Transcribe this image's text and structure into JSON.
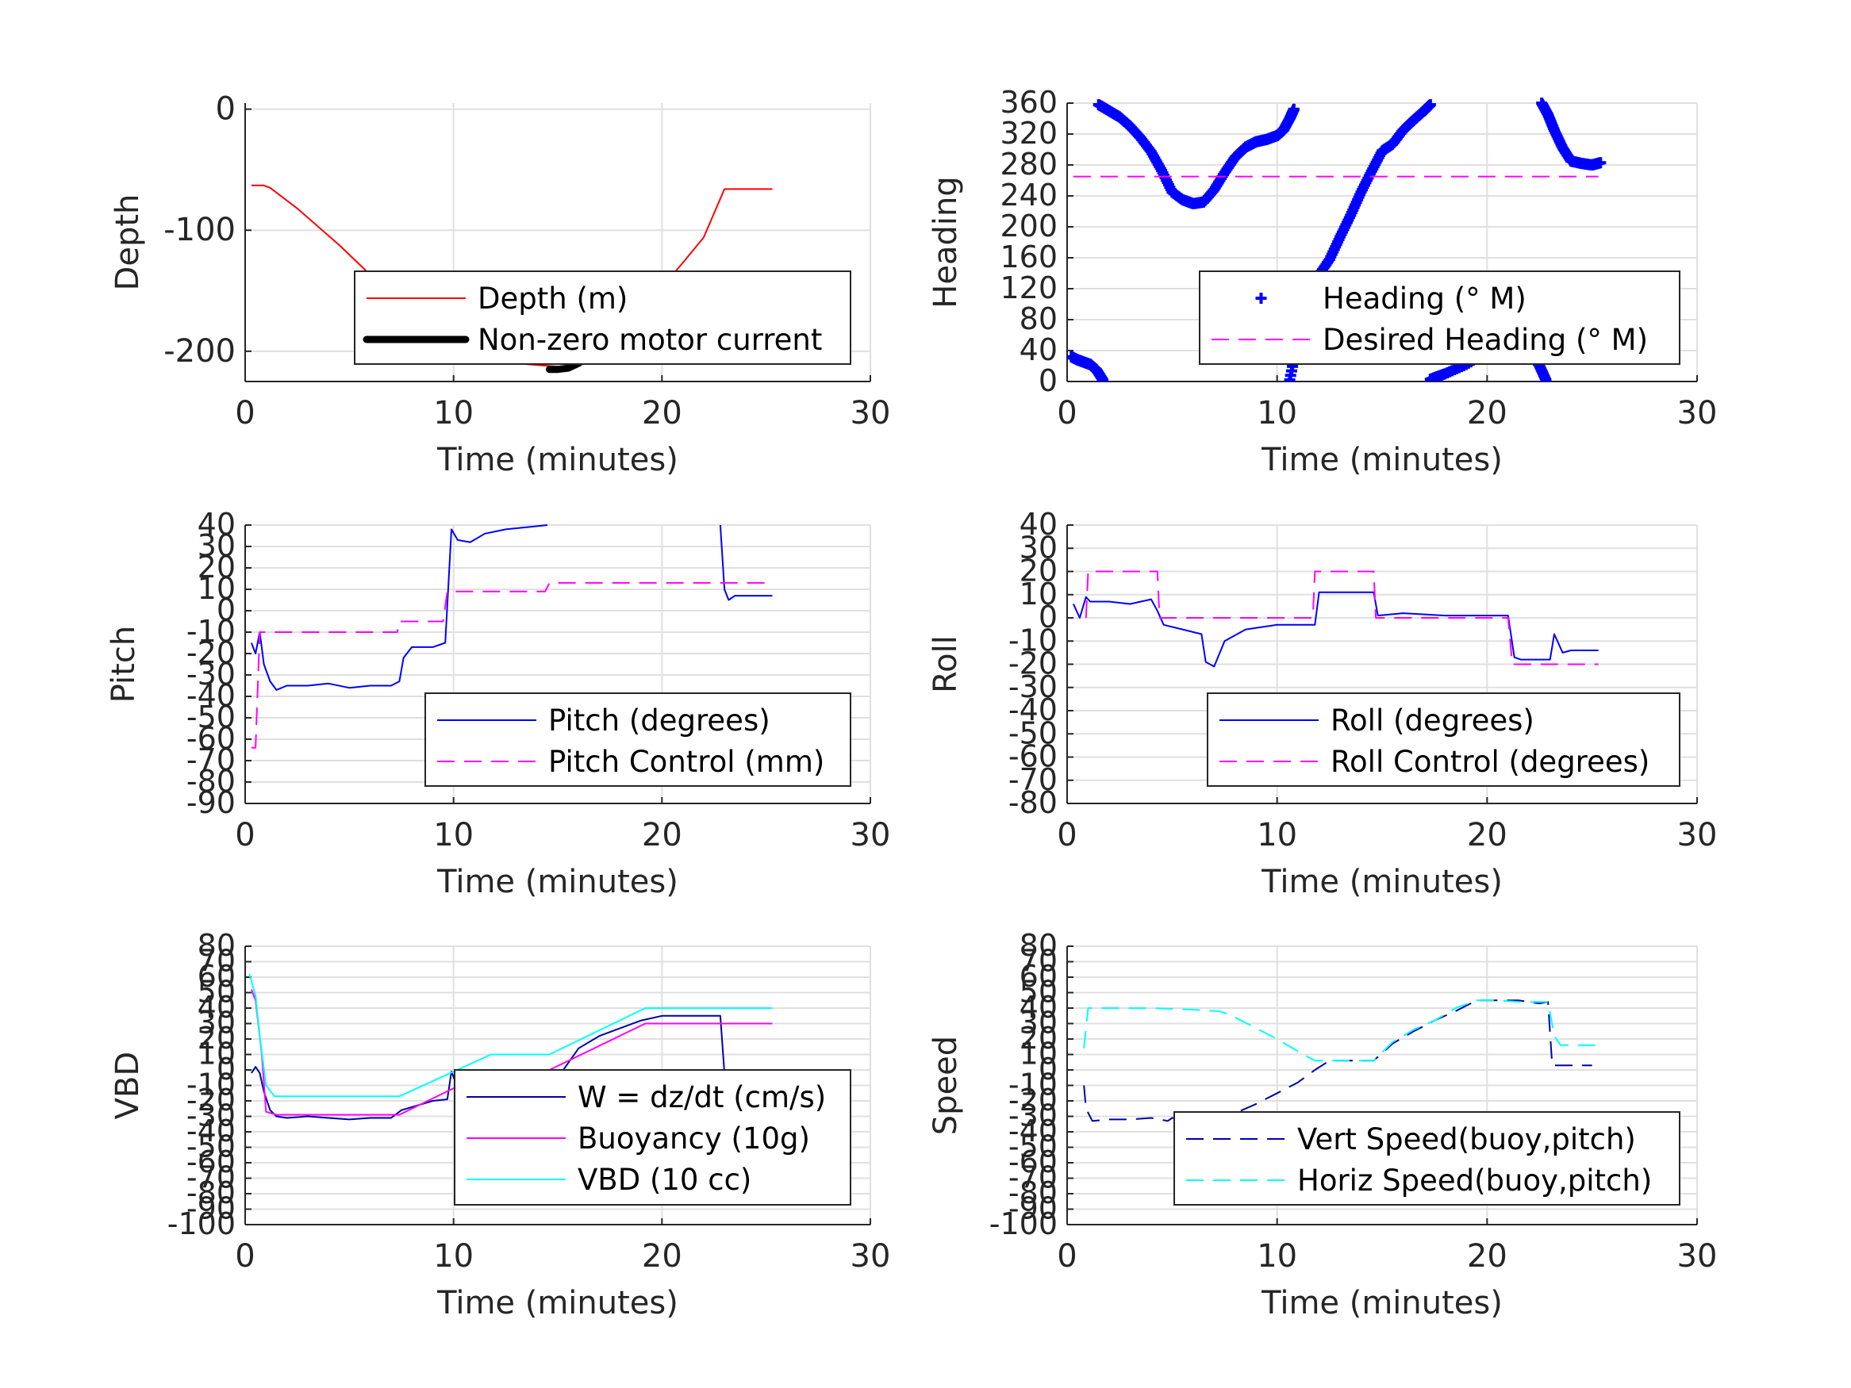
{
  "chart_data": [
    {
      "id": "depth",
      "type": "line",
      "xlabel": "Time (minutes)",
      "ylabel": "Depth",
      "xlim": [
        0,
        30
      ],
      "ylim": [
        -225,
        5
      ],
      "xticks": [
        "0",
        "10",
        "20",
        "30"
      ],
      "yticks": [
        "0",
        "-100",
        "-200"
      ],
      "grid": true,
      "legend_position": "lower-right",
      "series": [
        {
          "name": "Depth (m)",
          "color": "#ff0000",
          "style": "solid",
          "x": [
            0.3,
            0.9,
            1.2,
            2.5,
            4.5,
            6.5,
            7.5,
            8.5,
            10,
            11.5,
            13,
            14.5,
            15.3,
            16,
            17,
            18,
            19,
            20,
            21,
            22,
            23,
            24,
            25.3
          ],
          "y": [
            -63,
            -63,
            -65,
            -82,
            -112,
            -145,
            -172,
            -191,
            -204,
            -206,
            -210,
            -212,
            -213,
            -210,
            -197,
            -182,
            -165,
            -147,
            -127,
            -106,
            -66,
            -66,
            -66
          ]
        },
        {
          "name": "Non-zero motor current",
          "color": "#000000",
          "style": "thick",
          "segments": [
            {
              "x": [
                7.5,
                8.0,
                8.5,
                9.0,
                9.5,
                10.0,
                10.5,
                11.0,
                11.5,
                11.9
              ],
              "y": [
                -185,
                -190,
                -193,
                -197,
                -201,
                -199,
                -201,
                -203,
                -205,
                -207
              ]
            },
            {
              "x": [
                14.6,
                15.0,
                15.5,
                16.0,
                16.5,
                17.0,
                17.5,
                18.0,
                18.5,
                19.1
              ],
              "y": [
                -215,
                -215,
                -214,
                -210,
                -203,
                -195,
                -186,
                -177,
                -169,
                -158
              ]
            }
          ]
        }
      ]
    },
    {
      "id": "heading",
      "type": "scatter",
      "xlabel": "Time (minutes)",
      "ylabel": "Heading",
      "xlim": [
        0,
        30
      ],
      "ylim": [
        0,
        360
      ],
      "xticks": [
        "0",
        "10",
        "20",
        "30"
      ],
      "yticks": [
        "0",
        "40",
        "80",
        "120",
        "160",
        "200",
        "240",
        "280",
        "320",
        "360"
      ],
      "grid": true,
      "legend_position": "lower-right",
      "series": [
        {
          "name": "Heading (° M)",
          "color": "#0000ff",
          "marker": "+",
          "segments": [
            {
              "x": [
                0.2,
                0.5,
                0.8,
                1.1,
                1.4,
                1.7
              ],
              "y": [
                32,
                28,
                25,
                22,
                15,
                2
              ]
            },
            {
              "x": [
                1.5,
                2.0,
                2.5,
                3.0,
                3.5,
                4.0,
                4.5,
                5.0,
                5.5,
                6.0,
                6.5,
                7.0,
                7.5,
                8.0,
                8.5,
                9.0,
                9.5,
                10.0,
                10.3,
                10.6,
                10.8
              ],
              "y": [
                358,
                350,
                342,
                330,
                315,
                297,
                273,
                245,
                235,
                230,
                232,
                248,
                270,
                290,
                303,
                310,
                313,
                318,
                325,
                340,
                352
              ]
            },
            {
              "x": [
                10.6,
                11.0,
                11.5,
                12.0,
                12.5,
                13.0,
                13.5,
                14.0,
                14.5,
                15.0,
                15.5,
                16.0,
                16.5,
                17.0,
                17.3
              ],
              "y": [
                2,
                55,
                100,
                138,
                158,
                187,
                215,
                245,
                272,
                298,
                307,
                325,
                338,
                350,
                358
              ]
            },
            {
              "x": [
                17.3,
                18.0,
                19.0,
                20.0,
                20.5,
                21.0,
                21.5,
                22.0,
                22.5,
                22.8
              ],
              "y": [
                3,
                10,
                22,
                38,
                50,
                58,
                52,
                40,
                20,
                2
              ]
            },
            {
              "x": [
                22.6,
                22.9,
                23.2,
                23.6,
                24.0,
                24.5,
                25.0,
                25.4
              ],
              "y": [
                360,
                345,
                325,
                302,
                285,
                282,
                280,
                283
              ]
            }
          ]
        },
        {
          "name": "Desired Heading (° M)",
          "color": "#ff00ff",
          "style": "dashed",
          "x": [
            0.3,
            25.3
          ],
          "y": [
            265,
            265
          ]
        }
      ]
    },
    {
      "id": "pitch",
      "type": "line",
      "xlabel": "Time (minutes)",
      "ylabel": "Pitch",
      "xlim": [
        0,
        30
      ],
      "ylim": [
        -90,
        40
      ],
      "xticks": [
        "0",
        "10",
        "20",
        "30"
      ],
      "yticks": [
        "40",
        "30",
        "20",
        "10",
        "0",
        "-10",
        "-20",
        "-30",
        "-40",
        "-50",
        "-60",
        "-70",
        "-80",
        "-90"
      ],
      "grid": true,
      "legend_position": "lower-right",
      "series": [
        {
          "name": "Pitch (degrees)",
          "color": "#0000ff",
          "style": "solid",
          "segments": [
            {
              "x": [
                0.3,
                0.5,
                0.7,
                0.9,
                1.2,
                1.5,
                2.0,
                3.0,
                4.0,
                5.0,
                6.0,
                7.0,
                7.4,
                7.6,
                8.0,
                9.0,
                9.6,
                9.9,
                10.2,
                10.8,
                11.5,
                12.5,
                13.5,
                14.5
              ],
              "y": [
                -15,
                -20,
                -10,
                -25,
                -33,
                -37,
                -35,
                -35,
                -34,
                -36,
                -35,
                -35,
                -33,
                -22,
                -17,
                -17,
                -15,
                38,
                33,
                32,
                36,
                38,
                39,
                40
              ]
            },
            {
              "x": [
                22.8,
                23.0,
                23.2,
                23.5,
                24.0,
                25.3
              ],
              "y": [
                40,
                10,
                5,
                7,
                7,
                7
              ]
            }
          ]
        },
        {
          "name": "Pitch Control (mm)",
          "color": "#ff00ff",
          "style": "dashed",
          "x": [
            0.3,
            0.5,
            0.7,
            7.3,
            7.4,
            9.5,
            9.7,
            14.4,
            14.6,
            25.3
          ],
          "y": [
            -64,
            -64,
            -10,
            -10,
            -5,
            -5,
            9,
            9,
            13,
            13
          ]
        }
      ]
    },
    {
      "id": "roll",
      "type": "line",
      "xlabel": "Time (minutes)",
      "ylabel": "Roll",
      "xlim": [
        0,
        30
      ],
      "ylim": [
        -80,
        40
      ],
      "xticks": [
        "0",
        "10",
        "20",
        "30"
      ],
      "yticks": [
        "40",
        "30",
        "20",
        "10",
        "0",
        "-10",
        "-20",
        "-30",
        "-40",
        "-50",
        "-60",
        "-70",
        "-80"
      ],
      "grid": true,
      "legend_position": "lower-right",
      "series": [
        {
          "name": "Roll (degrees)",
          "color": "#0000ff",
          "style": "solid",
          "x": [
            0.3,
            0.6,
            0.9,
            1.1,
            2.0,
            3.0,
            4.0,
            4.3,
            4.6,
            5.5,
            6.4,
            6.6,
            7.0,
            7.5,
            8.5,
            10.0,
            11.8,
            12.0,
            14.6,
            14.8,
            16.0,
            18.0,
            20.0,
            21.0,
            21.3,
            21.6,
            23.0,
            23.2,
            23.6,
            24.0,
            25.3
          ],
          "y": [
            6,
            0,
            9,
            7,
            7,
            6,
            8,
            3,
            -3,
            -5,
            -7,
            -19,
            -21,
            -10,
            -5,
            -3,
            -3,
            11,
            11,
            1,
            2,
            1,
            1,
            1,
            -17,
            -18,
            -18,
            -7,
            -15,
            -14,
            -14
          ]
        },
        {
          "name": "Roll Control (degrees)",
          "color": "#ff00ff",
          "style": "dashed",
          "x": [
            0.9,
            1.0,
            4.3,
            4.4,
            11.7,
            11.8,
            14.6,
            14.7,
            21.0,
            21.2,
            25.3
          ],
          "y": [
            0,
            20,
            20,
            0,
            0,
            20,
            20,
            0,
            0,
            -20,
            -20
          ]
        }
      ]
    },
    {
      "id": "vbd",
      "type": "line",
      "xlabel": "Time (minutes)",
      "ylabel": "VBD",
      "xlim": [
        0,
        30
      ],
      "ylim": [
        -100,
        80
      ],
      "xticks": [
        "0",
        "10",
        "20",
        "30"
      ],
      "yticks": [
        "80",
        "70",
        "60",
        "50",
        "40",
        "30",
        "20",
        "10",
        "0",
        "-10",
        "-20",
        "-30",
        "-40",
        "-50",
        "-60",
        "-70",
        "-80",
        "-90",
        "-100"
      ],
      "grid": true,
      "legend_position": "lower-right",
      "series": [
        {
          "name": "W = dz/dt (cm/s)",
          "color": "#0000aa",
          "style": "solid",
          "x": [
            0.3,
            0.5,
            0.7,
            0.9,
            1.2,
            1.5,
            2.0,
            3.0,
            4.0,
            5.0,
            6.0,
            7.0,
            7.5,
            8.0,
            9.0,
            9.7,
            9.9,
            10.1,
            10.5,
            11.5,
            12.5,
            14.0,
            15.0,
            16.0,
            17.0,
            18.0,
            19.0,
            20.0,
            21.0,
            22.0,
            22.8,
            23.0,
            25.3
          ],
          "y": [
            -2,
            2,
            -2,
            -14,
            -26,
            -30,
            -31,
            -30,
            -31,
            -32,
            -31,
            -31,
            -26,
            -24,
            -20,
            -19,
            -1,
            -8,
            -13,
            -12,
            -12,
            -11,
            -5,
            14,
            22,
            27,
            32,
            35,
            35,
            35,
            35,
            -2,
            -2
          ]
        },
        {
          "name": "Buoyancy (10g)",
          "color": "#ff00ff",
          "style": "solid",
          "x": [
            0.3,
            0.5,
            0.8,
            1.0,
            1.5,
            7.4,
            11.8,
            14.6,
            19.2,
            25.3
          ],
          "y": [
            52,
            45,
            10,
            -27,
            -29,
            -29,
            0,
            0,
            30,
            30
          ]
        },
        {
          "name": "VBD (10 cc)",
          "color": "#00ffff",
          "style": "solid",
          "x": [
            0.2,
            0.5,
            0.7,
            1.0,
            1.4,
            7.4,
            11.8,
            14.6,
            19.2,
            25.3
          ],
          "y": [
            62,
            48,
            22,
            -10,
            -17,
            -17,
            10,
            10,
            40,
            40
          ]
        }
      ]
    },
    {
      "id": "speed",
      "type": "line",
      "xlabel": "Time (minutes)",
      "ylabel": "Speed",
      "xlim": [
        0,
        30
      ],
      "ylim": [
        -100,
        80
      ],
      "xticks": [
        "0",
        "10",
        "20",
        "30"
      ],
      "yticks": [
        "80",
        "70",
        "60",
        "50",
        "40",
        "30",
        "20",
        "10",
        "0",
        "-10",
        "-20",
        "-30",
        "-40",
        "-50",
        "-60",
        "-70",
        "-80",
        "-90",
        "-100"
      ],
      "grid": true,
      "legend_position": "lower-right",
      "series": [
        {
          "name": "Vert Speed(buoy,pitch)",
          "color": "#0000aa",
          "style": "dashed",
          "x": [
            0.8,
            0.9,
            1.2,
            2.0,
            3.0,
            4.0,
            4.8,
            5.0,
            6.0,
            7.0,
            7.5,
            8.0,
            9.0,
            10.0,
            11.0,
            11.8,
            12.5,
            13.5,
            14.6,
            15.5,
            16.5,
            17.5,
            18.5,
            19.5,
            20.5,
            21.5,
            22.5,
            22.9,
            23.1,
            25.0
          ],
          "y": [
            -10,
            -25,
            -33,
            -32,
            -32,
            -31,
            -33,
            -31,
            -33,
            -32,
            -31,
            -28,
            -22,
            -15,
            -8,
            0,
            6,
            6,
            6,
            17,
            25,
            32,
            38,
            45,
            45,
            45,
            43,
            44,
            3,
            3
          ]
        },
        {
          "name": "Horiz Speed(buoy,pitch)",
          "color": "#00ffff",
          "style": "dashed",
          "x": [
            0.8,
            0.9,
            1.0,
            2.0,
            4.0,
            6.0,
            7.2,
            7.5,
            8.0,
            9.0,
            10.0,
            11.0,
            11.8,
            12.5,
            13.5,
            14.6,
            15.5,
            16.5,
            17.5,
            18.5,
            19.5,
            20.5,
            21.5,
            22.5,
            22.9,
            23.2,
            23.5,
            25.3
          ],
          "y": [
            14,
            27,
            40,
            40,
            40,
            39,
            38,
            37,
            34,
            27,
            20,
            12,
            6,
            6,
            6,
            6,
            18,
            26,
            32,
            40,
            45,
            45,
            44,
            44,
            44,
            22,
            16,
            16
          ]
        }
      ]
    }
  ]
}
